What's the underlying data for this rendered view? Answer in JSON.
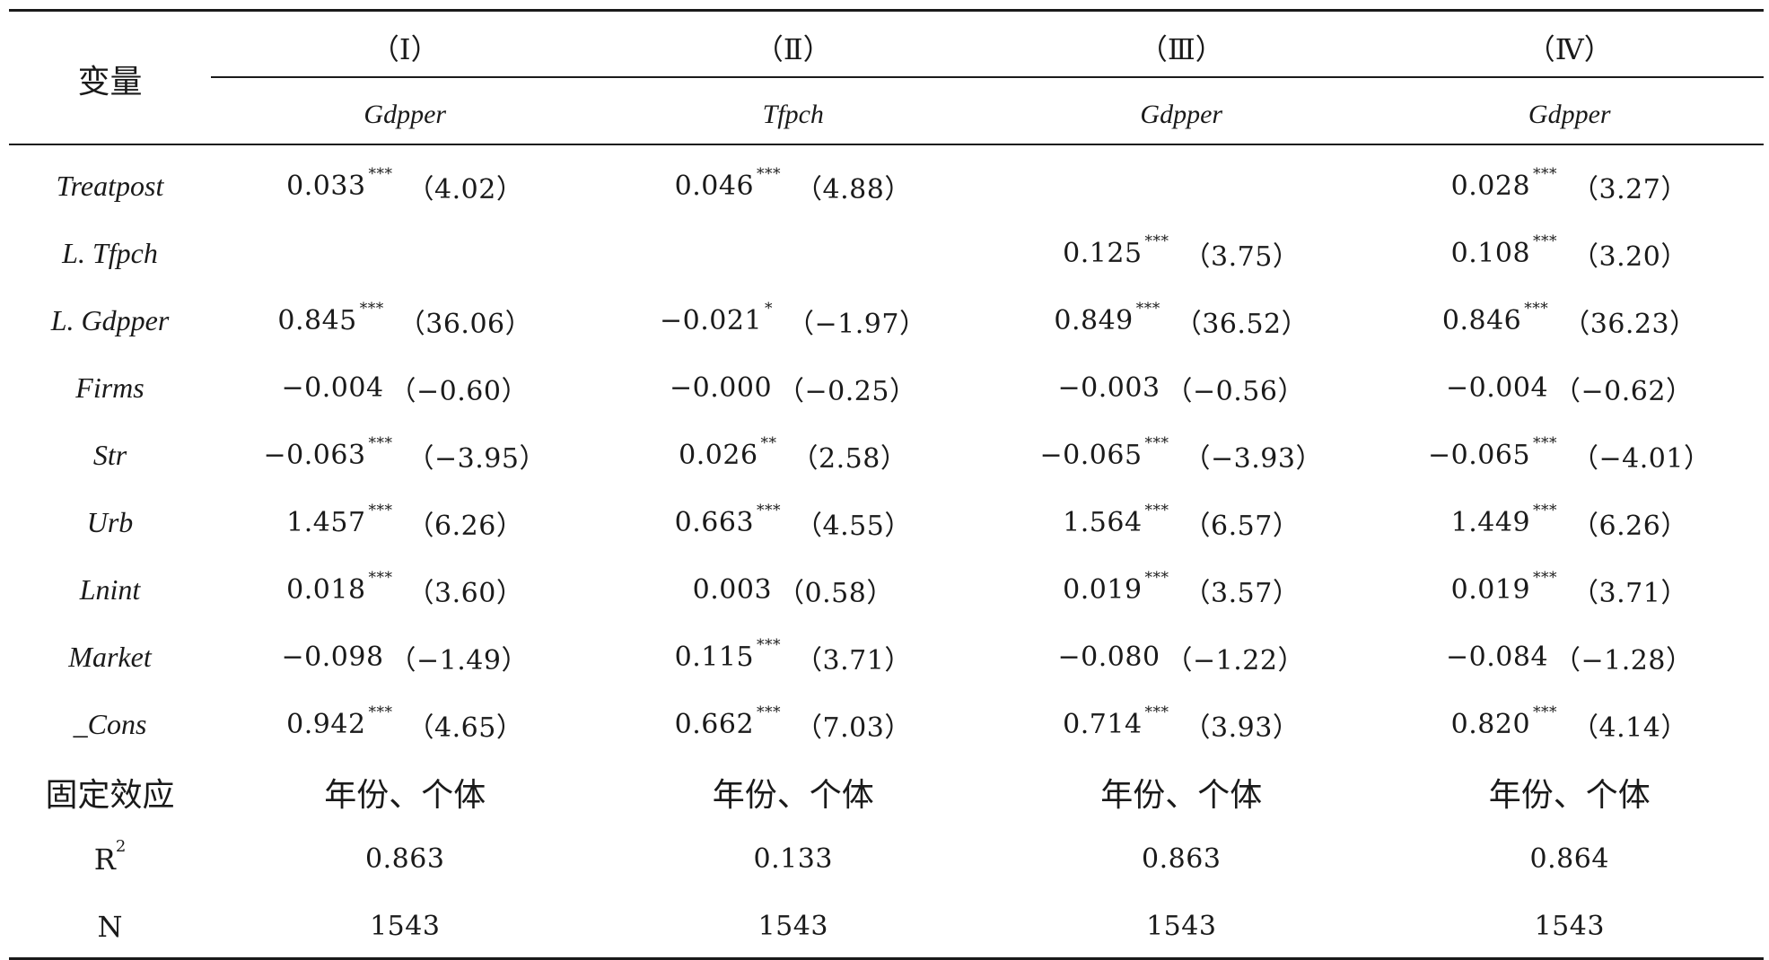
{
  "table": {
    "corner_label": "变量",
    "columns": [
      {
        "model": "（Ⅰ）",
        "dep_var": "Gdpper"
      },
      {
        "model": "（Ⅱ）",
        "dep_var": "Tfpch"
      },
      {
        "model": "（Ⅲ）",
        "dep_var": "Gdpper"
      },
      {
        "model": "（Ⅳ）",
        "dep_var": "Gdpper"
      }
    ],
    "rows": [
      {
        "variable": "Treatpost",
        "cells": [
          {
            "coef": "0.033",
            "stars": "***",
            "t": "（4.02）"
          },
          {
            "coef": "0.046",
            "stars": "***",
            "t": "（4.88）"
          },
          {
            "coef": "",
            "stars": "",
            "t": ""
          },
          {
            "coef": "0.028",
            "stars": "***",
            "t": "（3.27）"
          }
        ]
      },
      {
        "variable": "L. Tfpch",
        "cells": [
          {
            "coef": "",
            "stars": "",
            "t": ""
          },
          {
            "coef": "",
            "stars": "",
            "t": ""
          },
          {
            "coef": "0.125",
            "stars": "***",
            "t": "（3.75）"
          },
          {
            "coef": "0.108",
            "stars": "***",
            "t": "（3.20）"
          }
        ]
      },
      {
        "variable": "L. Gdpper",
        "cells": [
          {
            "coef": "0.845",
            "stars": "***",
            "t": "（36.06）"
          },
          {
            "coef": "−0.021",
            "stars": "*",
            "t": "（−1.97）"
          },
          {
            "coef": "0.849",
            "stars": "***",
            "t": "（36.52）"
          },
          {
            "coef": "0.846",
            "stars": "***",
            "t": "（36.23）"
          }
        ]
      },
      {
        "variable": "Firms",
        "cells": [
          {
            "coef": "−0.004",
            "stars": "",
            "t": "（−0.60）"
          },
          {
            "coef": "−0.000",
            "stars": "",
            "t": "（−0.25）"
          },
          {
            "coef": "−0.003",
            "stars": "",
            "t": "（−0.56）"
          },
          {
            "coef": "−0.004",
            "stars": "",
            "t": "（−0.62）"
          }
        ]
      },
      {
        "variable": "Str",
        "cells": [
          {
            "coef": "−0.063",
            "stars": "***",
            "t": "（−3.95）"
          },
          {
            "coef": "0.026",
            "stars": "**",
            "t": "（2.58）"
          },
          {
            "coef": "−0.065",
            "stars": "***",
            "t": "（−3.93）"
          },
          {
            "coef": "−0.065",
            "stars": "***",
            "t": "（−4.01）"
          }
        ]
      },
      {
        "variable": "Urb",
        "cells": [
          {
            "coef": "1.457",
            "stars": "***",
            "t": "（6.26）"
          },
          {
            "coef": "0.663",
            "stars": "***",
            "t": "（4.55）"
          },
          {
            "coef": "1.564",
            "stars": "***",
            "t": "（6.57）"
          },
          {
            "coef": "1.449",
            "stars": "***",
            "t": "（6.26）"
          }
        ]
      },
      {
        "variable": "Lnint",
        "cells": [
          {
            "coef": "0.018",
            "stars": "***",
            "t": "（3.60）"
          },
          {
            "coef": "0.003",
            "stars": "",
            "t": "（0.58）"
          },
          {
            "coef": "0.019",
            "stars": "***",
            "t": "（3.57）"
          },
          {
            "coef": "0.019",
            "stars": "***",
            "t": "（3.71）"
          }
        ]
      },
      {
        "variable": "Market",
        "cells": [
          {
            "coef": "−0.098",
            "stars": "",
            "t": "（−1.49）"
          },
          {
            "coef": "0.115",
            "stars": "***",
            "t": "（3.71）"
          },
          {
            "coef": "−0.080",
            "stars": "",
            "t": "（−1.22）"
          },
          {
            "coef": "−0.084",
            "stars": "",
            "t": "（−1.28）"
          }
        ]
      },
      {
        "variable": "_Cons",
        "cells": [
          {
            "coef": "0.942",
            "stars": "***",
            "t": "（4.65）"
          },
          {
            "coef": "0.662",
            "stars": "***",
            "t": "（7.03）"
          },
          {
            "coef": "0.714",
            "stars": "***",
            "t": "（3.93）"
          },
          {
            "coef": "0.820",
            "stars": "***",
            "t": "（4.14）"
          }
        ]
      }
    ],
    "fixed_effects": {
      "label": "固定效应",
      "values": [
        "年份、个体",
        "年份、个体",
        "年份、个体",
        "年份、个体"
      ]
    },
    "r2": {
      "label_base": "R",
      "label_sup": "2",
      "values": [
        "0.863",
        "0.133",
        "0.863",
        "0.864"
      ]
    },
    "n": {
      "label": "N",
      "values": [
        "1543",
        "1543",
        "1543",
        "1543"
      ]
    }
  }
}
